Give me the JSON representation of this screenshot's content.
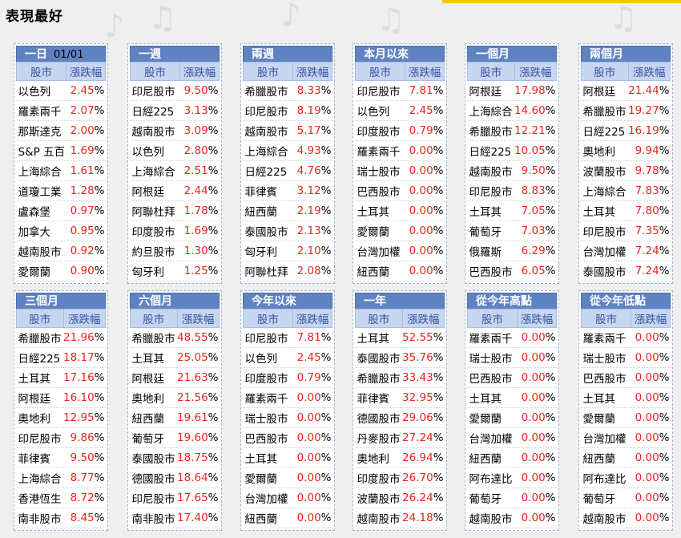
{
  "heading": "表現最好",
  "columns": {
    "market": "股市",
    "change": "漲跌幅"
  },
  "panels": [
    {
      "title": "一日",
      "date": "01/01",
      "rows": [
        [
          "以色列",
          "2.45"
        ],
        [
          "羅素兩千",
          "2.07"
        ],
        [
          "那斯達克",
          "2.00"
        ],
        [
          "S&P 五百",
          "1.69"
        ],
        [
          "上海綜合",
          "1.61"
        ],
        [
          "道瓊工業",
          "1.28"
        ],
        [
          "盧森堡",
          "0.97"
        ],
        [
          "加拿大",
          "0.95"
        ],
        [
          "越南股市",
          "0.92"
        ],
        [
          "愛爾蘭",
          "0.90"
        ]
      ]
    },
    {
      "title": "一週",
      "rows": [
        [
          "印尼股市",
          "9.50"
        ],
        [
          "日經225",
          "3.13"
        ],
        [
          "越南股市",
          "3.09"
        ],
        [
          "以色列",
          "2.80"
        ],
        [
          "上海綜合",
          "2.51"
        ],
        [
          "阿根廷",
          "2.44"
        ],
        [
          "阿聯杜拜",
          "1.78"
        ],
        [
          "印度股市",
          "1.69"
        ],
        [
          "約旦股市",
          "1.30"
        ],
        [
          "匈牙利",
          "1.25"
        ]
      ]
    },
    {
      "title": "兩週",
      "rows": [
        [
          "希臘股市",
          "8.33"
        ],
        [
          "印尼股市",
          "8.19"
        ],
        [
          "越南股市",
          "5.17"
        ],
        [
          "上海綜合",
          "4.93"
        ],
        [
          "日經225",
          "4.76"
        ],
        [
          "菲律賓",
          "3.12"
        ],
        [
          "紐西蘭",
          "2.19"
        ],
        [
          "泰國股市",
          "2.13"
        ],
        [
          "匈牙利",
          "2.10"
        ],
        [
          "阿聯杜拜",
          "2.08"
        ]
      ]
    },
    {
      "title": "本月以來",
      "rows": [
        [
          "印尼股市",
          "7.81"
        ],
        [
          "以色列",
          "2.45"
        ],
        [
          "印度股市",
          "0.79"
        ],
        [
          "羅素兩千",
          "0.00"
        ],
        [
          "瑞士股市",
          "0.00"
        ],
        [
          "巴西股市",
          "0.00"
        ],
        [
          "土耳其",
          "0.00"
        ],
        [
          "愛爾蘭",
          "0.00"
        ],
        [
          "台灣加權",
          "0.00"
        ],
        [
          "紐西蘭",
          "0.00"
        ]
      ]
    },
    {
      "title": "一個月",
      "rows": [
        [
          "阿根廷",
          "17.98"
        ],
        [
          "上海綜合",
          "14.60"
        ],
        [
          "希臘股市",
          "12.21"
        ],
        [
          "日經225",
          "10.05"
        ],
        [
          "越南股市",
          "9.50"
        ],
        [
          "印尼股市",
          "8.83"
        ],
        [
          "土耳其",
          "7.05"
        ],
        [
          "葡萄牙",
          "7.03"
        ],
        [
          "俄羅斯",
          "6.29"
        ],
        [
          "巴西股市",
          "6.05"
        ]
      ]
    },
    {
      "title": "兩個月",
      "rows": [
        [
          "阿根廷",
          "21.44"
        ],
        [
          "希臘股市",
          "19.27"
        ],
        [
          "日經225",
          "16.19"
        ],
        [
          "奧地利",
          "9.94"
        ],
        [
          "波蘭股市",
          "9.78"
        ],
        [
          "上海綜合",
          "7.83"
        ],
        [
          "土耳其",
          "7.80"
        ],
        [
          "印尼股市",
          "7.35"
        ],
        [
          "台灣加權",
          "7.24"
        ],
        [
          "泰國股市",
          "7.24"
        ]
      ]
    },
    {
      "title": "三個月",
      "rows": [
        [
          "希臘股市",
          "21.96"
        ],
        [
          "日經225",
          "18.17"
        ],
        [
          "土耳其",
          "17.16"
        ],
        [
          "阿根廷",
          "16.10"
        ],
        [
          "奧地利",
          "12.95"
        ],
        [
          "印尼股市",
          "9.86"
        ],
        [
          "菲律賓",
          "9.50"
        ],
        [
          "上海綜合",
          "8.77"
        ],
        [
          "香港恆生",
          "8.72"
        ],
        [
          "南非股市",
          "8.45"
        ]
      ]
    },
    {
      "title": "六個月",
      "rows": [
        [
          "希臘股市",
          "48.55"
        ],
        [
          "土耳其",
          "25.05"
        ],
        [
          "阿根廷",
          "21.63"
        ],
        [
          "奧地利",
          "21.56"
        ],
        [
          "紐西蘭",
          "19.61"
        ],
        [
          "葡萄牙",
          "19.60"
        ],
        [
          "泰國股市",
          "18.75"
        ],
        [
          "德國股市",
          "18.64"
        ],
        [
          "印尼股市",
          "17.65"
        ],
        [
          "南非股市",
          "17.40"
        ]
      ]
    },
    {
      "title": "今年以來",
      "rows": [
        [
          "印尼股市",
          "7.81"
        ],
        [
          "以色列",
          "2.45"
        ],
        [
          "印度股市",
          "0.79"
        ],
        [
          "羅素兩千",
          "0.00"
        ],
        [
          "瑞士股市",
          "0.00"
        ],
        [
          "巴西股市",
          "0.00"
        ],
        [
          "土耳其",
          "0.00"
        ],
        [
          "愛爾蘭",
          "0.00"
        ],
        [
          "台灣加權",
          "0.00"
        ],
        [
          "紐西蘭",
          "0.00"
        ]
      ]
    },
    {
      "title": "一年",
      "rows": [
        [
          "土耳其",
          "52.55"
        ],
        [
          "泰國股市",
          "35.76"
        ],
        [
          "希臘股市",
          "33.43"
        ],
        [
          "菲律賓",
          "32.95"
        ],
        [
          "德國股市",
          "29.06"
        ],
        [
          "丹麥股市",
          "27.24"
        ],
        [
          "奧地利",
          "26.94"
        ],
        [
          "印度股市",
          "26.70"
        ],
        [
          "波蘭股市",
          "26.24"
        ],
        [
          "越南股市",
          "24.18"
        ]
      ]
    },
    {
      "title": "從今年高點",
      "rows": [
        [
          "羅素兩千",
          "0.00"
        ],
        [
          "瑞士股市",
          "0.00"
        ],
        [
          "巴西股市",
          "0.00"
        ],
        [
          "土耳其",
          "0.00"
        ],
        [
          "愛爾蘭",
          "0.00"
        ],
        [
          "台灣加權",
          "0.00"
        ],
        [
          "紐西蘭",
          "0.00"
        ],
        [
          "阿布達比",
          "0.00"
        ],
        [
          "葡萄牙",
          "0.00"
        ],
        [
          "越南股市",
          "0.00"
        ]
      ]
    },
    {
      "title": "從今年低點",
      "rows": [
        [
          "羅素兩千",
          "0.00"
        ],
        [
          "瑞士股市",
          "0.00"
        ],
        [
          "巴西股市",
          "0.00"
        ],
        [
          "土耳其",
          "0.00"
        ],
        [
          "愛爾蘭",
          "0.00"
        ],
        [
          "台灣加權",
          "0.00"
        ],
        [
          "紐西蘭",
          "0.00"
        ],
        [
          "阿布達比",
          "0.00"
        ],
        [
          "葡萄牙",
          "0.00"
        ],
        [
          "越南股市",
          "0.00"
        ]
      ]
    }
  ],
  "colors": {
    "header": "#5f83c2",
    "positive": "#e8261c",
    "subheader": "#c7d6f0"
  }
}
